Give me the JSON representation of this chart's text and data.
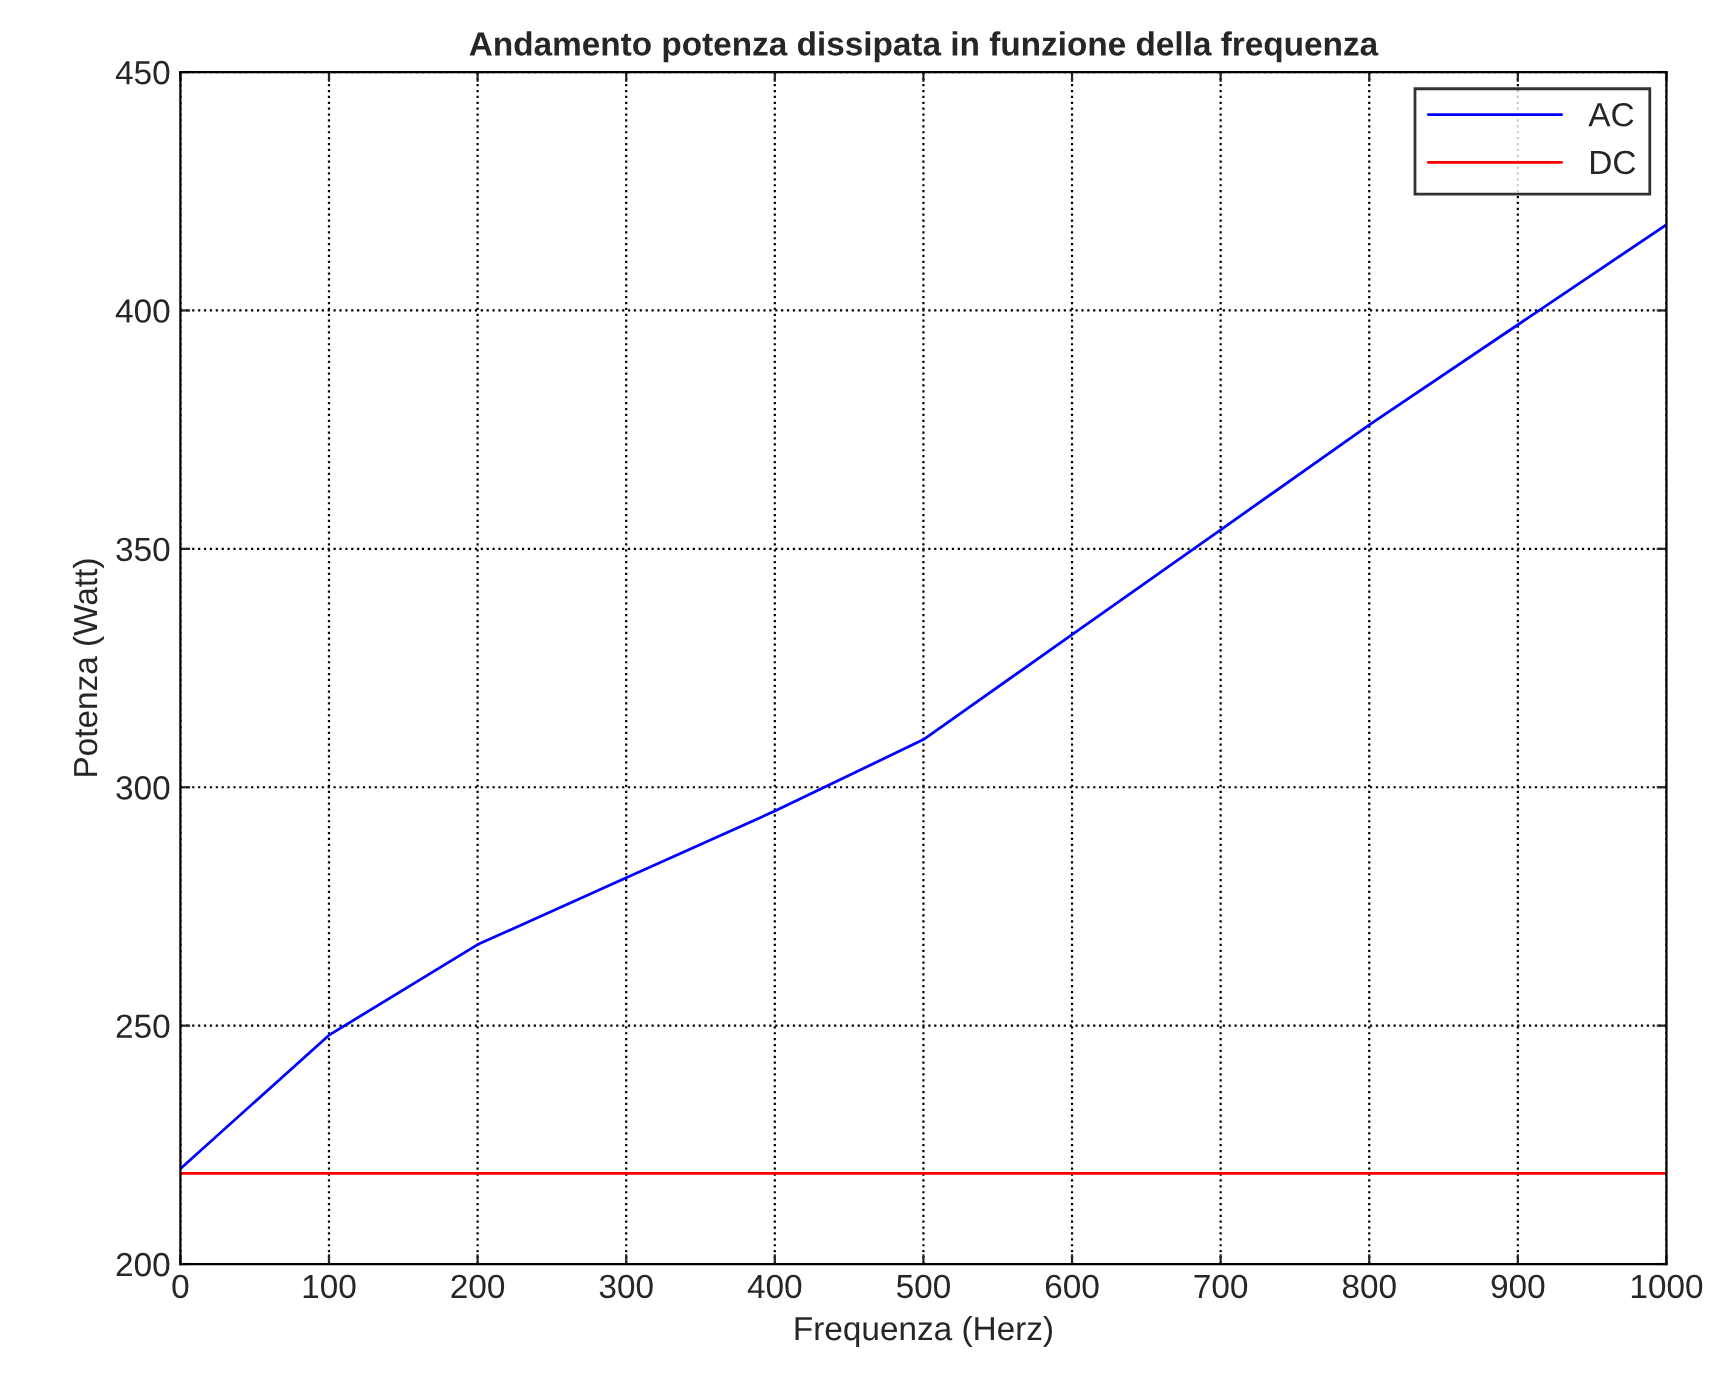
{
  "chart_data": {
    "type": "line",
    "title": "Andamento potenza dissipata in funzione della frequenza",
    "xlabel": "Frequenza (Herz)",
    "ylabel": "Potenza (Watt)",
    "x": [
      0,
      100,
      200,
      300,
      400,
      500,
      600,
      700,
      800,
      900,
      1000
    ],
    "series": [
      {
        "name": "AC",
        "color": "#0000ff",
        "values": [
          220,
          248,
          267,
          281,
          295,
          310,
          332,
          354,
          376,
          397,
          418
        ]
      },
      {
        "name": "DC",
        "color": "#ff0000",
        "values": [
          219,
          219,
          219,
          219,
          219,
          219,
          219,
          219,
          219,
          219,
          219
        ]
      }
    ],
    "xlim": [
      0,
      1000
    ],
    "xticks": [
      0,
      100,
      200,
      300,
      400,
      500,
      600,
      700,
      800,
      900,
      1000
    ],
    "ylim": [
      200,
      450
    ],
    "yticks": [
      200,
      250,
      300,
      350,
      400,
      450
    ],
    "grid": true,
    "legend": "top right",
    "line_style": "solid",
    "marker": "none"
  }
}
